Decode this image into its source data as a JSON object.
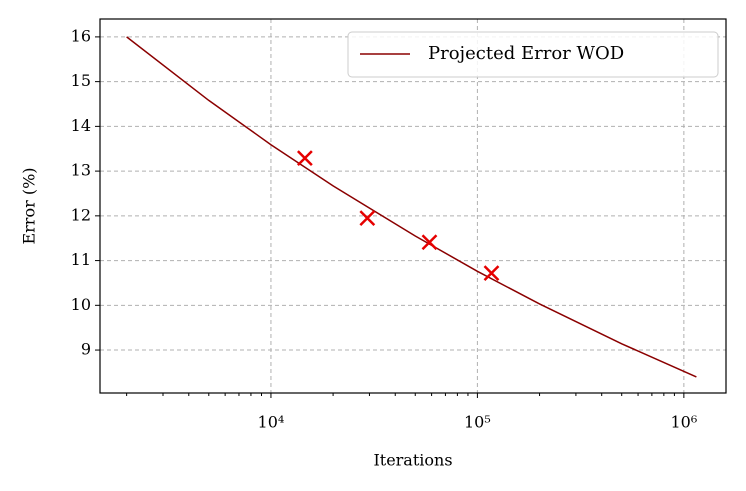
{
  "chart_data": {
    "type": "line",
    "xlabel": "Iterations",
    "ylabel": "Error (%)",
    "xscale": "log",
    "grid": true,
    "legend": "upper right",
    "xlim": [
      1486,
      1600000
    ],
    "ylim": [
      8.04,
      16.4
    ],
    "xticks": [
      {
        "value": 10000,
        "label": "10⁴"
      },
      {
        "value": 100000,
        "label": "10⁵"
      },
      {
        "value": 1000000,
        "label": "10⁶"
      }
    ],
    "yticks": [
      9,
      10,
      11,
      12,
      13,
      14,
      15,
      16
    ],
    "series": [
      {
        "name": "Projected Error WOD",
        "type": "line",
        "color": "#8b0000",
        "x": [
          2000,
          5000,
          10000,
          20000,
          50000,
          100000,
          200000,
          500000,
          1150000
        ],
        "values": [
          16.0,
          14.58,
          13.59,
          12.67,
          11.55,
          10.76,
          10.03,
          9.14,
          8.4
        ]
      },
      {
        "type": "scatter",
        "color": "#e60000",
        "x": [
          14600,
          29300,
          58600,
          117000
        ],
        "values": [
          13.29,
          11.95,
          11.41,
          10.72
        ]
      }
    ]
  }
}
